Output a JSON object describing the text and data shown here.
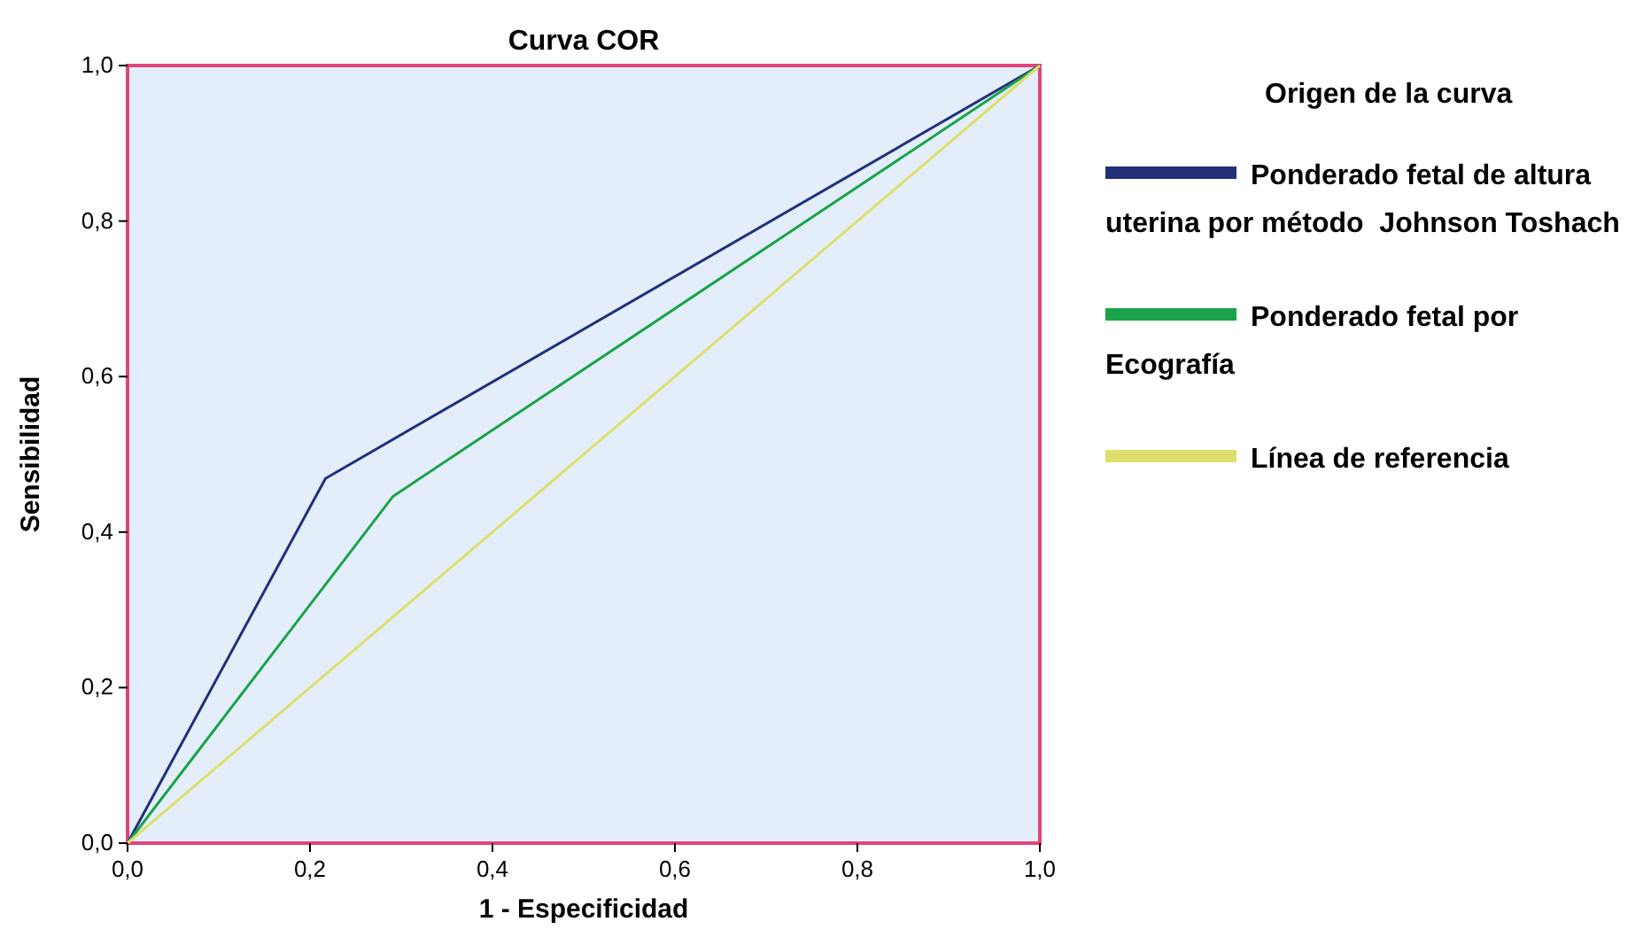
{
  "chart_data": {
    "type": "line",
    "title": "Curva COR",
    "xlabel": "1 - Especificidad",
    "ylabel": "Sensibilidad",
    "legend_title": "Origen de la curva",
    "xlim": [
      0,
      1
    ],
    "ylim": [
      0,
      1
    ],
    "xticks": [
      {
        "value": 0,
        "label": "0,0"
      },
      {
        "value": 0.2,
        "label": "0,2"
      },
      {
        "value": 0.4,
        "label": "0,4"
      },
      {
        "value": 0.6,
        "label": "0,6"
      },
      {
        "value": 0.8,
        "label": "0,8"
      },
      {
        "value": 1,
        "label": "1,0"
      }
    ],
    "yticks": [
      {
        "value": 0,
        "label": "0,0"
      },
      {
        "value": 0.2,
        "label": "0,2"
      },
      {
        "value": 0.4,
        "label": "0,4"
      },
      {
        "value": 0.6,
        "label": "0,6"
      },
      {
        "value": 0.8,
        "label": "0,8"
      },
      {
        "value": 1,
        "label": "1,0"
      }
    ],
    "series": [
      {
        "name": "Ponderado fetal de altura uterina por método  Johnson Toshach",
        "color": "#22307a",
        "x": [
          0,
          0.217,
          1
        ],
        "values": [
          0,
          0.469,
          1
        ]
      },
      {
        "name": "Ponderado fetal por Ecografía",
        "color": "#1aa34a",
        "x": [
          0,
          0.291,
          1
        ],
        "values": [
          0,
          0.446,
          1
        ]
      },
      {
        "name": "Línea de referencia",
        "color": "#dede6e",
        "x": [
          0,
          1
        ],
        "values": [
          0,
          1
        ]
      }
    ],
    "legend": "right",
    "grid": false,
    "marker": "none",
    "line_style": "solid"
  }
}
